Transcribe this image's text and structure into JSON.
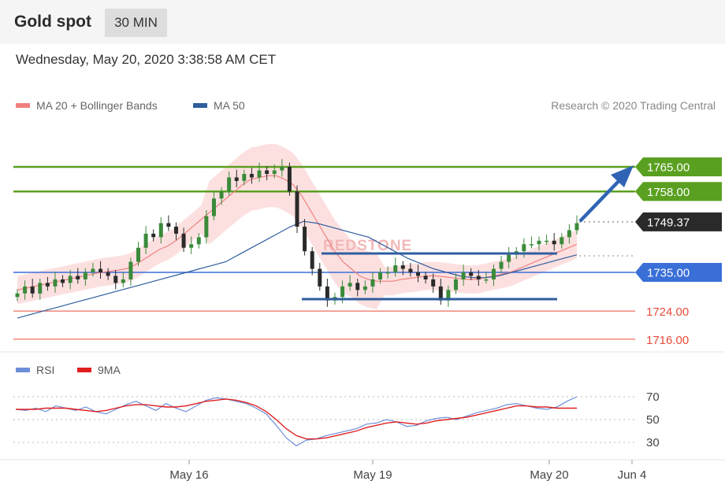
{
  "header": {
    "title": "Gold spot",
    "interval": "30 MIN"
  },
  "datetime": "Wednesday, May 20, 2020 3:38:58 AM CET",
  "legend": {
    "ma20_label": "MA 20 + Bollinger Bands",
    "ma50_label": "MA 50",
    "ma20_color": "#f08080",
    "ma50_color": "#2f5e9e"
  },
  "credit": "Research © 2020 Trading Central",
  "watermark": "REDSTONE",
  "colors": {
    "up": "#3a8a3a",
    "down": "#2a2a2a",
    "band": "#fbd5d5",
    "green_level": "#5aa020",
    "blue_level": "#3a6fd8",
    "red_level": "#e74c3c",
    "current": "#2a2a2a",
    "arrow": "#2f64b4"
  },
  "chart_data": [
    {
      "type": "candlestick",
      "title": "Gold spot",
      "interval": "30 MIN",
      "x_ticks": [
        "May 16",
        "May 19",
        "May 20",
        "Jun 4"
      ],
      "ylim": [
        1712,
        1768
      ],
      "levels": [
        {
          "value": 1765.0,
          "label": "1765.00",
          "kind": "resistance"
        },
        {
          "value": 1758.0,
          "label": "1758.00",
          "kind": "resistance"
        },
        {
          "value": 1749.37,
          "label": "1749.37",
          "kind": "current"
        },
        {
          "value": 1735.0,
          "label": "1735.00",
          "kind": "pivot"
        },
        {
          "value": 1724.0,
          "label": "1724.00",
          "kind": "support"
        },
        {
          "value": 1716.0,
          "label": "1716.00",
          "kind": "support"
        }
      ],
      "close": [
        1729,
        1731,
        1729,
        1732,
        1731,
        1733,
        1732,
        1734,
        1733,
        1735,
        1736,
        1735,
        1734,
        1732,
        1733,
        1738,
        1742,
        1746,
        1745,
        1749,
        1748,
        1746,
        1742,
        1743,
        1745,
        1751,
        1756,
        1758,
        1762,
        1761,
        1763,
        1762,
        1764,
        1763,
        1764,
        1765,
        1758,
        1748,
        1741,
        1736,
        1731,
        1727,
        1728,
        1731,
        1732,
        1730,
        1731,
        1733,
        1735,
        1735,
        1737,
        1736,
        1735,
        1734,
        1733,
        1731,
        1727,
        1730,
        1733,
        1735,
        1734,
        1733,
        1733,
        1736,
        1738,
        1740,
        1741,
        1743,
        1743,
        1744,
        1744,
        1743,
        1745,
        1747,
        1749
      ],
      "ma20": [
        1730,
        1730.5,
        1731,
        1731.5,
        1732,
        1732.5,
        1733,
        1733.5,
        1734,
        1734.5,
        1735,
        1735.3,
        1735.6,
        1736,
        1737,
        1738.5,
        1740,
        1741.5,
        1742.5,
        1744,
        1746,
        1748,
        1750,
        1752,
        1754,
        1756,
        1758,
        1760,
        1761.5,
        1762,
        1762.5,
        1762.5,
        1761.5,
        1760,
        1757,
        1753,
        1749,
        1745,
        1741,
        1738,
        1736,
        1734,
        1733,
        1732.5,
        1732.5,
        1732.5,
        1733,
        1733.3,
        1733.6,
        1734,
        1734,
        1733.8,
        1733.5,
        1733.2,
        1733,
        1733,
        1733.5,
        1734,
        1734.5,
        1735,
        1736,
        1737,
        1738,
        1739,
        1740,
        1741,
        1742,
        1743
      ],
      "ma50": [
        1722,
        1723,
        1724,
        1725,
        1726,
        1727,
        1728,
        1729,
        1730,
        1731,
        1732,
        1733,
        1734,
        1735,
        1736,
        1737,
        1738,
        1740,
        1742,
        1744,
        1746,
        1748,
        1749.5,
        1749,
        1748,
        1747,
        1746,
        1745,
        1743,
        1741,
        1739,
        1737.5,
        1736,
        1735,
        1734,
        1733.5,
        1733.5,
        1734,
        1735,
        1736,
        1737,
        1738,
        1739,
        1740
      ],
      "rsi": [
        59,
        58,
        60,
        57,
        62,
        60,
        58,
        61,
        57,
        55,
        59,
        63,
        66,
        62,
        58,
        64,
        60,
        57,
        62,
        67,
        69,
        68,
        66,
        64,
        60,
        55,
        45,
        34,
        27,
        32,
        33,
        36,
        38,
        40,
        42,
        46,
        47,
        50,
        48,
        44,
        45,
        49,
        51,
        52,
        50,
        53,
        56,
        58,
        60,
        63,
        64,
        62,
        60,
        59,
        61,
        66,
        70
      ],
      "rsi_9ma": [
        59,
        59,
        59,
        60,
        60,
        60,
        59,
        58,
        57,
        58,
        60,
        62,
        63,
        63,
        62,
        61,
        61,
        62,
        64,
        66,
        67,
        68,
        67,
        65,
        62,
        57,
        50,
        42,
        36,
        33,
        33,
        34,
        36,
        38,
        40,
        43,
        45,
        47,
        48,
        47,
        46,
        47,
        49,
        50,
        51,
        52,
        54,
        56,
        58,
        60,
        62,
        62,
        61,
        61,
        60,
        60,
        60
      ],
      "rsi_ticks": [
        30,
        50,
        70
      ],
      "rsi_label": "RSI",
      "rsi_9ma_label": "9MA"
    }
  ]
}
